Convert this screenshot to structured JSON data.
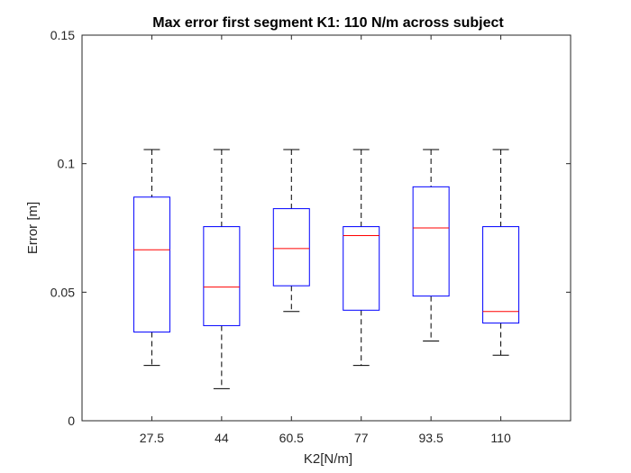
{
  "chart_data": {
    "type": "boxplot",
    "title": "Max error first segment K1: 110 N/m across subject",
    "xlabel": "K2[N/m]",
    "ylabel": "Error [m]",
    "ylim": [
      0,
      0.15
    ],
    "yticks": [
      0,
      0.05,
      0.1,
      0.15
    ],
    "ytick_labels": [
      "0",
      "0.05",
      "0.1",
      "0.15"
    ],
    "grid": false,
    "categories": [
      "27.5",
      "44",
      "60.5",
      "77",
      "93.5",
      "110"
    ],
    "boxes": [
      {
        "whisker_low": 0.0215,
        "q1": 0.0345,
        "median": 0.0665,
        "q3": 0.087,
        "whisker_high": 0.1055
      },
      {
        "whisker_low": 0.0125,
        "q1": 0.037,
        "median": 0.052,
        "q3": 0.0755,
        "whisker_high": 0.1055
      },
      {
        "whisker_low": 0.0425,
        "q1": 0.0525,
        "median": 0.067,
        "q3": 0.0825,
        "whisker_high": 0.1055
      },
      {
        "whisker_low": 0.0215,
        "q1": 0.043,
        "median": 0.072,
        "q3": 0.0755,
        "whisker_high": 0.1055
      },
      {
        "whisker_low": 0.031,
        "q1": 0.0485,
        "median": 0.075,
        "q3": 0.091,
        "whisker_high": 0.1055
      },
      {
        "whisker_low": 0.0255,
        "q1": 0.038,
        "median": 0.0425,
        "q3": 0.0755,
        "whisker_high": 0.1055
      }
    ],
    "colors": {
      "box": "#0000ff",
      "median": "#ff0000",
      "whisker": "#000000",
      "axis": "#262626"
    }
  }
}
